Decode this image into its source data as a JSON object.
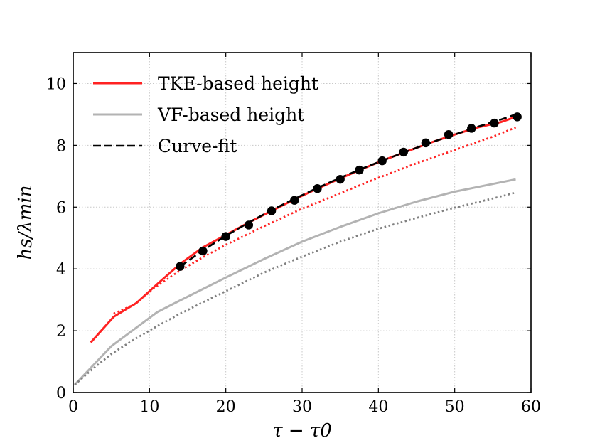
{
  "chart_data": {
    "type": "line",
    "title": "",
    "xlabel": "τ − τ0",
    "ylabel": "hs/λmin",
    "xlim": [
      0,
      60
    ],
    "ylim": [
      0,
      11
    ],
    "xticks": [
      0,
      10,
      20,
      30,
      40,
      50,
      60
    ],
    "yticks": [
      0,
      2,
      4,
      6,
      8,
      10
    ],
    "grid": true,
    "legend_position": "top-left",
    "series": [
      {
        "name": "TKE-based height",
        "in_legend": true,
        "style": "solid",
        "color": "#ff2222",
        "x": [
          2.3,
          5.3,
          8.3,
          11.2,
          14.1,
          17,
          20,
          23,
          26,
          29,
          32,
          35,
          38,
          41,
          44,
          47,
          50,
          53,
          56,
          58
        ],
        "y": [
          1.62,
          2.45,
          2.9,
          3.55,
          4.18,
          4.7,
          5.1,
          5.5,
          5.88,
          6.25,
          6.6,
          6.93,
          7.25,
          7.55,
          7.83,
          8.1,
          8.35,
          8.58,
          8.75,
          8.92
        ]
      },
      {
        "name": "VF-based height",
        "in_legend": true,
        "style": "solid",
        "color": "#b3b3b3",
        "x": [
          0.2,
          2.5,
          5,
          8,
          11,
          14,
          17,
          20,
          25,
          30,
          35,
          40,
          45,
          50,
          55,
          58
        ],
        "y": [
          0.25,
          0.85,
          1.5,
          2.05,
          2.6,
          2.98,
          3.35,
          3.72,
          4.32,
          4.88,
          5.36,
          5.8,
          6.18,
          6.5,
          6.75,
          6.9
        ]
      },
      {
        "name": "Curve-fit",
        "in_legend": true,
        "style": "dashed",
        "color": "#000000",
        "x": [
          14,
          17,
          20,
          23,
          26,
          29,
          32,
          35,
          38,
          41,
          44,
          47,
          50,
          53,
          56,
          58
        ],
        "y": [
          4.08,
          4.6,
          5.07,
          5.5,
          5.9,
          6.27,
          6.62,
          6.95,
          7.26,
          7.55,
          7.83,
          8.1,
          8.35,
          8.6,
          8.83,
          9.0
        ]
      },
      {
        "name": "TKE-based height (dotted)",
        "in_legend": false,
        "style": "dotted",
        "color": "#ff2222",
        "x": [
          5.3,
          8,
          11,
          14,
          17,
          20,
          25,
          30,
          35,
          40,
          45,
          50,
          55,
          58
        ],
        "y": [
          2.55,
          2.85,
          3.45,
          3.95,
          4.38,
          4.78,
          5.38,
          5.95,
          6.45,
          6.95,
          7.42,
          7.85,
          8.28,
          8.58
        ]
      },
      {
        "name": "VF-based height (dotted)",
        "in_legend": false,
        "style": "dotted",
        "color": "#808080",
        "x": [
          0.2,
          2.5,
          5,
          8,
          11,
          14,
          17,
          20,
          25,
          30,
          35,
          40,
          45,
          50,
          55,
          58
        ],
        "y": [
          0.25,
          0.75,
          1.25,
          1.72,
          2.15,
          2.55,
          2.92,
          3.28,
          3.88,
          4.4,
          4.88,
          5.3,
          5.65,
          5.98,
          6.28,
          6.47
        ]
      }
    ],
    "markers": {
      "name": "TKE-based height samples",
      "color": "#000000",
      "x": [
        14,
        17,
        20,
        23,
        26,
        29,
        32,
        35,
        37.5,
        40.5,
        43.3,
        46.2,
        49.2,
        52.2,
        55.2,
        58.2
      ],
      "y": [
        4.08,
        4.58,
        5.05,
        5.42,
        5.88,
        6.22,
        6.6,
        6.9,
        7.2,
        7.5,
        7.78,
        8.08,
        8.35,
        8.55,
        8.72,
        8.92
      ]
    }
  }
}
